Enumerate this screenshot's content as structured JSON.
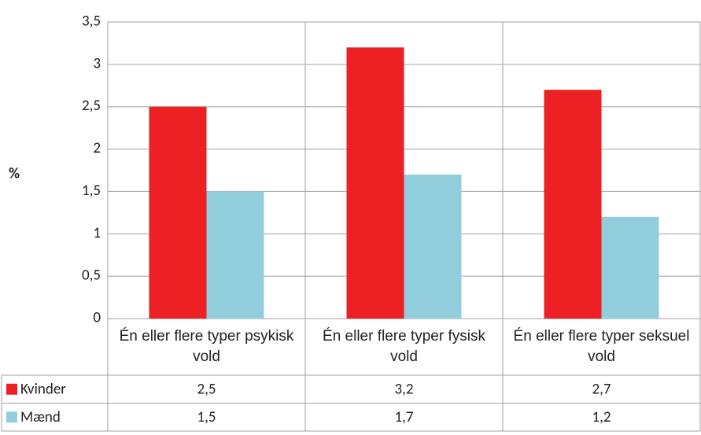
{
  "chart_data": {
    "type": "bar",
    "y_label": "%",
    "categories": [
      "Én eller flere typer psykisk vold",
      "Én eller flere typer fysisk vold",
      "Én eller flere typer seksuel vold"
    ],
    "series": [
      {
        "name": "Kvinder",
        "color": "#ed2024",
        "values": [
          2.5,
          3.2,
          2.7
        ],
        "value_labels": [
          "2,5",
          "3,2",
          "2,7"
        ]
      },
      {
        "name": "Mænd",
        "color": "#92cddc",
        "values": [
          1.5,
          1.7,
          1.2
        ],
        "value_labels": [
          "1,5",
          "1,7",
          "1,2"
        ]
      }
    ],
    "ylim": [
      0,
      3.5
    ],
    "yticks": [
      0,
      {
        "value": 0.5,
        "label": "0,5"
      },
      1,
      {
        "value": 1.5,
        "label": "1,5"
      },
      2,
      {
        "value": 2.5,
        "label": "2,5"
      },
      3,
      {
        "value": 3.5,
        "label": "3,5"
      }
    ],
    "grid": true,
    "data_table": true
  }
}
